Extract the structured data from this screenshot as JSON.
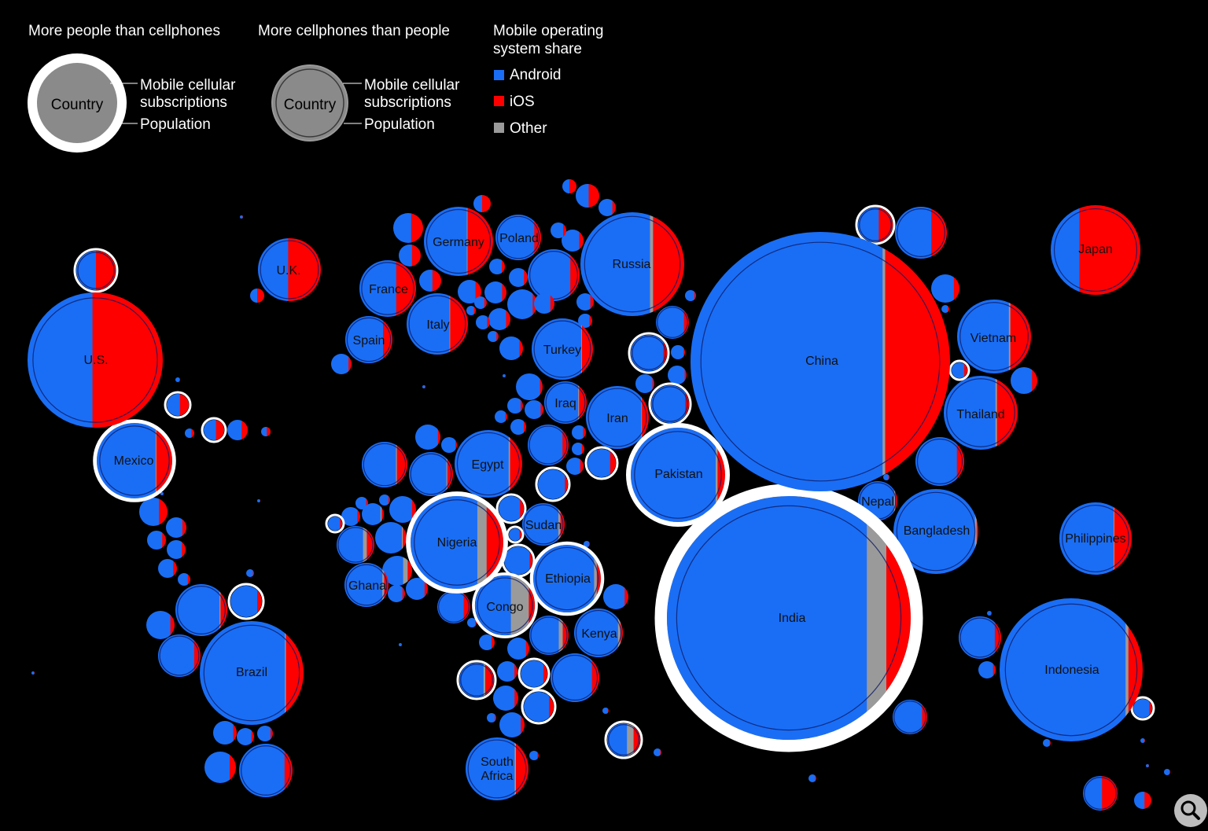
{
  "legend": {
    "group1_title": "More people than cellphones",
    "group2_title": "More cellphones than people",
    "group3_title": "Mobile operating system share",
    "group3_title_line1": "Mobile operating",
    "group3_title_line2": "system share",
    "sample_country": "Country",
    "subs_line1": "Mobile cellular",
    "subs_line2": "subscriptions",
    "population": "Population",
    "os_items": [
      {
        "label": "Android",
        "color": "#1a6ef5"
      },
      {
        "label": "iOS",
        "color": "#ff0000"
      },
      {
        "label": "Other",
        "color": "#9a9a9a"
      }
    ]
  },
  "colors": {
    "android": "#1a6ef5",
    "ios": "#ff0000",
    "other": "#9a9a9a",
    "background": "#000000",
    "ring": "#ffffff"
  },
  "chart_data": {
    "type": "bubble-map",
    "title": "",
    "encoding": "Bubble size = population / mobile subscriptions; fill split by mobile OS share (Android, iOS, Other)",
    "countries": [
      {
        "name": "China",
        "more_phones_than_people": true,
        "android": 0.74,
        "other": 0.01,
        "ios": 0.25
      },
      {
        "name": "India",
        "more_phones_than_people": false,
        "android": 0.82,
        "other": 0.08,
        "ios": 0.1
      },
      {
        "name": "U.S.",
        "more_phones_than_people": true,
        "android": 0.48,
        "other": 0.0,
        "ios": 0.52
      },
      {
        "name": "Indonesia",
        "more_phones_than_people": true,
        "android": 0.88,
        "other": 0.02,
        "ios": 0.1
      },
      {
        "name": "Brazil",
        "more_phones_than_people": true,
        "android": 0.82,
        "other": 0.01,
        "ios": 0.17
      },
      {
        "name": "Pakistan",
        "more_phones_than_people": false,
        "android": 0.9,
        "other": 0.02,
        "ios": 0.08
      },
      {
        "name": "Nigeria",
        "more_phones_than_people": false,
        "android": 0.72,
        "other": 0.1,
        "ios": 0.18
      },
      {
        "name": "Bangladesh",
        "more_phones_than_people": true,
        "android": 0.96,
        "other": 0.02,
        "ios": 0.02
      },
      {
        "name": "Russia",
        "more_phones_than_people": true,
        "android": 0.67,
        "other": 0.03,
        "ios": 0.3
      },
      {
        "name": "Mexico",
        "more_phones_than_people": false,
        "android": 0.78,
        "other": 0.01,
        "ios": 0.21
      },
      {
        "name": "Japan",
        "more_phones_than_people": true,
        "android": 0.32,
        "other": 0.0,
        "ios": 0.68
      },
      {
        "name": "Ethiopia",
        "more_phones_than_people": false,
        "android": 0.9,
        "other": 0.04,
        "ios": 0.06
      },
      {
        "name": "Philippines",
        "more_phones_than_people": true,
        "android": 0.75,
        "other": 0.01,
        "ios": 0.24
      },
      {
        "name": "Egypt",
        "more_phones_than_people": true,
        "android": 0.8,
        "other": 0.02,
        "ios": 0.18
      },
      {
        "name": "Vietnam",
        "more_phones_than_people": true,
        "android": 0.7,
        "other": 0.02,
        "ios": 0.28
      },
      {
        "name": "Congo",
        "more_phones_than_people": false,
        "android": 0.6,
        "other": 0.3,
        "ios": 0.1
      },
      {
        "name": "Turkey",
        "more_phones_than_people": true,
        "android": 0.81,
        "other": 0.01,
        "ios": 0.18
      },
      {
        "name": "Iran",
        "more_phones_than_people": true,
        "android": 0.88,
        "other": 0.01,
        "ios": 0.11
      },
      {
        "name": "Germany",
        "more_phones_than_people": true,
        "android": 0.62,
        "other": 0.01,
        "ios": 0.37
      },
      {
        "name": "Thailand",
        "more_phones_than_people": true,
        "android": 0.7,
        "other": 0.02,
        "ios": 0.28
      },
      {
        "name": "U.K.",
        "more_phones_than_people": true,
        "android": 0.48,
        "other": 0.0,
        "ios": 0.52
      },
      {
        "name": "France",
        "more_phones_than_people": true,
        "android": 0.65,
        "other": 0.0,
        "ios": 0.35
      },
      {
        "name": "Italy",
        "more_phones_than_people": true,
        "android": 0.7,
        "other": 0.01,
        "ios": 0.29
      },
      {
        "name": "South Africa",
        "more_phones_than_people": true,
        "android": 0.78,
        "other": 0.02,
        "ios": 0.2
      },
      {
        "name": "Kenya",
        "more_phones_than_people": true,
        "android": 0.9,
        "other": 0.05,
        "ios": 0.05
      },
      {
        "name": "Spain",
        "more_phones_than_people": true,
        "android": 0.8,
        "other": 0.0,
        "ios": 0.2
      },
      {
        "name": "Sudan",
        "more_phones_than_people": true,
        "android": 0.85,
        "other": 0.05,
        "ios": 0.1
      },
      {
        "name": "Iraq",
        "more_phones_than_people": true,
        "android": 0.8,
        "other": 0.02,
        "ios": 0.18
      },
      {
        "name": "Poland",
        "more_phones_than_people": true,
        "android": 0.85,
        "other": 0.0,
        "ios": 0.15
      },
      {
        "name": "Ghana",
        "more_phones_than_people": true,
        "android": 0.86,
        "other": 0.04,
        "ios": 0.1
      },
      {
        "name": "Nepal",
        "more_phones_than_people": true,
        "android": 0.92,
        "other": 0.02,
        "ios": 0.06
      }
    ]
  }
}
